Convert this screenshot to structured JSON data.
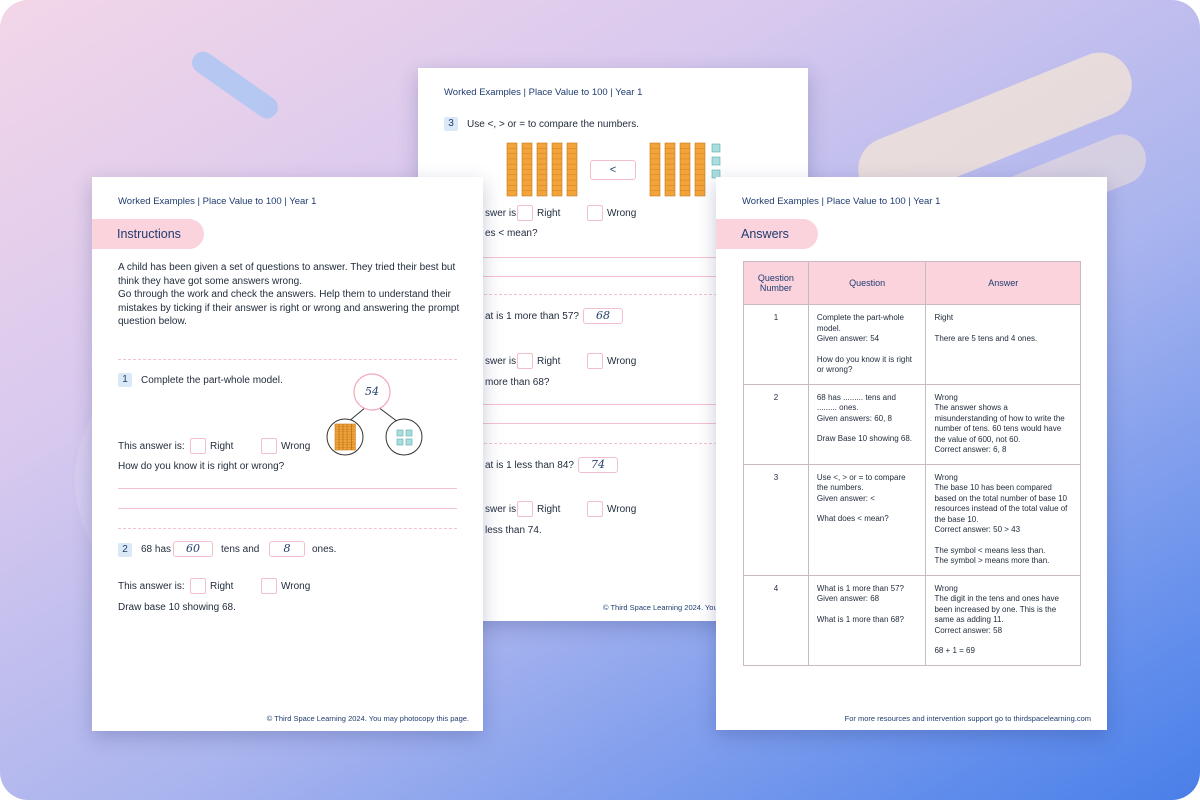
{
  "left_page": {
    "header": "Worked Examples | Place Value to 100 | Year 1",
    "section": "Instructions",
    "instructions": [
      "A child has been given a set of questions to answer. They tried their best but think they have got some answers wrong.",
      "Go through the work and check the answers. Help them to understand their mistakes by ticking if their answer is right or wrong and answering the prompt question below."
    ],
    "q1": {
      "number": "1",
      "text": "Complete the part-whole model.",
      "whole": "54",
      "answer_label": "This answer is:",
      "right": "Right",
      "wrong": "Wrong",
      "prompt": "How do you know it is right or wrong?"
    },
    "q2": {
      "number": "2",
      "text_a": "68 has",
      "answer_tens": "60",
      "text_b": "tens and",
      "answer_ones": "8",
      "text_c": "ones.",
      "answer_label": "This answer is:",
      "right": "Right",
      "wrong": "Wrong",
      "prompt": "Draw base 10 showing 68."
    },
    "footer": "© Third Space Learning 2024. You may photocopy this page."
  },
  "middle_page": {
    "header": "Worked Examples | Place Value to 100 | Year 1",
    "q3": {
      "number": "3",
      "text": "Use <, > or = to compare the numbers.",
      "symbol": "<"
    },
    "fragments": {
      "answer_1": "swer is:",
      "right_1": "Right",
      "wrong_1": "Wrong",
      "prompt_1": "es < mean?",
      "q4": "at is 1 more than 57?",
      "q4_answer": "68",
      "answer_2": "swer is:",
      "right_2": "Right",
      "wrong_2": "Wrong",
      "prompt_2": "more than 68?",
      "q5": "at is 1 less than 84?",
      "q5_answer": "74",
      "answer_3": "swer is:",
      "right_3": "Right",
      "wrong_3": "Wrong",
      "prompt_3": "less than 74.",
      "footer": "© Third Space Learning 2024. You m"
    }
  },
  "right_page": {
    "header": "Worked Examples | Place Value to 100 | Year 1",
    "section": "Answers",
    "table": {
      "headers": [
        "Question Number",
        "Question",
        "Answer"
      ],
      "rows": [
        {
          "number": "1",
          "question": [
            [
              "Complete the part-whole model.",
              "Given answer: 54"
            ],
            [
              "How do you know it is right or wrong?"
            ]
          ],
          "answer": [
            [
              "Right"
            ],
            [
              "There are 5 tens and 4 ones."
            ]
          ]
        },
        {
          "number": "2",
          "question": [
            [
              "68 has ......... tens and ......... ones.",
              "Given answers: 60, 8"
            ],
            [
              "Draw Base 10 showing 68."
            ]
          ],
          "answer": [
            [
              "Wrong",
              "The answer shows a misunderstanding of how to write the number of tens. 60 tens would have the value of 600, not 60.",
              "Correct answer: 6, 8"
            ]
          ]
        },
        {
          "number": "3",
          "question": [
            [
              "Use <, > or = to compare the numbers.",
              "Given answer: <"
            ],
            [
              "What does < mean?"
            ]
          ],
          "answer": [
            [
              "Wrong",
              "The base 10 has been compared based on the total number of base 10 resources instead of the total value of the base 10.",
              "Correct answer: 50 > 43"
            ],
            [
              "The symbol < means less than.",
              "The symbol > means more than."
            ]
          ]
        },
        {
          "number": "4",
          "question": [
            [
              "What is 1 more than 57?",
              "Given answer: 68"
            ],
            [
              "What is 1 more than 68?"
            ]
          ],
          "answer": [
            [
              "Wrong",
              "The digit in the tens and ones have been increased by one. This is the same as adding 11.",
              "Correct answer: 58"
            ],
            [
              "68 + 1 = 69"
            ]
          ]
        }
      ]
    },
    "footer": "For more resources and intervention support go to thirdspacelearning.com"
  }
}
